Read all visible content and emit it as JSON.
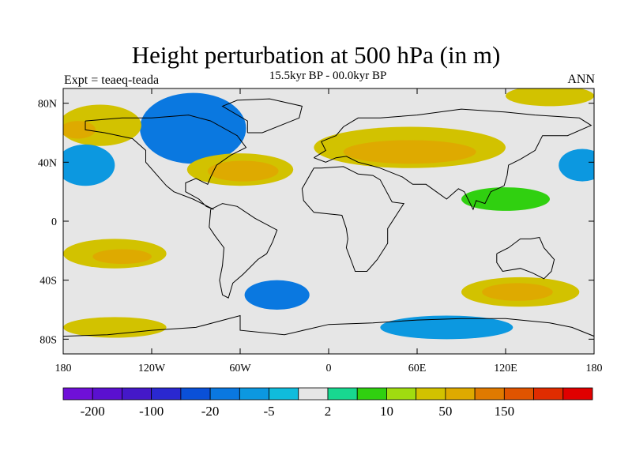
{
  "title": "Height perturbation at 500 hPa (in m)",
  "subtitle": "15.5kyr BP - 00.0kyr BP",
  "left_label": "Expt = teaeq-teada",
  "right_label": "ANN",
  "map": {
    "lon_range": [
      -180,
      180
    ],
    "lat_range": [
      -90,
      90
    ],
    "x_ticks": [
      {
        "value": -180,
        "label": "180"
      },
      {
        "value": -120,
        "label": "120W"
      },
      {
        "value": -60,
        "label": "60W"
      },
      {
        "value": 0,
        "label": "0"
      },
      {
        "value": 60,
        "label": "60E"
      },
      {
        "value": 120,
        "label": "120E"
      },
      {
        "value": 180,
        "label": "180"
      }
    ],
    "y_ticks": [
      {
        "value": 80,
        "label": "80N"
      },
      {
        "value": 40,
        "label": "40N"
      },
      {
        "value": 0,
        "label": "0"
      },
      {
        "value": -40,
        "label": "40S"
      },
      {
        "value": -80,
        "label": "80S"
      }
    ],
    "background_color": "#e6e6e6",
    "coastline_color": "#000000"
  },
  "colorbar": {
    "colors": [
      "#6f10d8",
      "#5a10d0",
      "#4418c8",
      "#2a28d0",
      "#0a50d8",
      "#0a78e0",
      "#0c98e0",
      "#10bcdc",
      "#e6e6e6",
      "#18d890",
      "#30d010",
      "#a0dc10",
      "#d2c200",
      "#deaa00",
      "#e07a00",
      "#e05400",
      "#e02c00",
      "#e00000"
    ],
    "labels": [
      {
        "boundary": 1,
        "text": "-200"
      },
      {
        "boundary": 3,
        "text": "-100"
      },
      {
        "boundary": 5,
        "text": "-20"
      },
      {
        "boundary": 7,
        "text": "-5"
      },
      {
        "boundary": 9,
        "text": "2"
      },
      {
        "boundary": 11,
        "text": "10"
      },
      {
        "boundary": 13,
        "text": "50"
      },
      {
        "boundary": 15,
        "text": "150"
      }
    ]
  },
  "anomalies": [
    {
      "lon": -95,
      "lat": 62,
      "rlon": 26,
      "rlat": 15,
      "level": 2
    },
    {
      "lon": -98,
      "lat": 64,
      "rlon": 16,
      "rlat": 9,
      "level": 3
    },
    {
      "lon": -92,
      "lat": 63,
      "rlon": 36,
      "rlat": 24,
      "level": 5
    },
    {
      "lon": -60,
      "lat": 35,
      "rlon": 36,
      "rlat": 11,
      "level": 12
    },
    {
      "lon": -58,
      "lat": 34,
      "rlon": 24,
      "rlat": 7,
      "level": 13
    },
    {
      "lon": 55,
      "lat": 50,
      "rlon": 65,
      "rlat": 14,
      "level": 12
    },
    {
      "lon": 55,
      "lat": 47,
      "rlon": 45,
      "rlat": 8,
      "level": 13
    },
    {
      "lon": -155,
      "lat": 65,
      "rlon": 28,
      "rlat": 14,
      "level": 12
    },
    {
      "lon": -170,
      "lat": 62,
      "rlon": 12,
      "rlat": 6,
      "level": 13
    },
    {
      "lon": 150,
      "lat": 85,
      "rlon": 30,
      "rlat": 7,
      "level": 12
    },
    {
      "lon": -165,
      "lat": 38,
      "rlon": 20,
      "rlat": 14,
      "level": 6
    },
    {
      "lon": 172,
      "lat": 38,
      "rlon": 16,
      "rlat": 11,
      "level": 6
    },
    {
      "lon": -145,
      "lat": -22,
      "rlon": 35,
      "rlat": 10,
      "level": 12
    },
    {
      "lon": -140,
      "lat": -24,
      "rlon": 20,
      "rlat": 5,
      "level": 13
    },
    {
      "lon": 130,
      "lat": -48,
      "rlon": 40,
      "rlat": 10,
      "level": 12
    },
    {
      "lon": 128,
      "lat": -48,
      "rlon": 24,
      "rlat": 6,
      "level": 13
    },
    {
      "lon": -145,
      "lat": -72,
      "rlon": 35,
      "rlat": 7,
      "level": 12
    },
    {
      "lon": -35,
      "lat": -50,
      "rlon": 22,
      "rlat": 10,
      "level": 5
    },
    {
      "lon": 80,
      "lat": -72,
      "rlon": 45,
      "rlat": 8,
      "level": 6
    },
    {
      "lon": 120,
      "lat": 15,
      "rlon": 30,
      "rlat": 8,
      "level": 10
    }
  ]
}
